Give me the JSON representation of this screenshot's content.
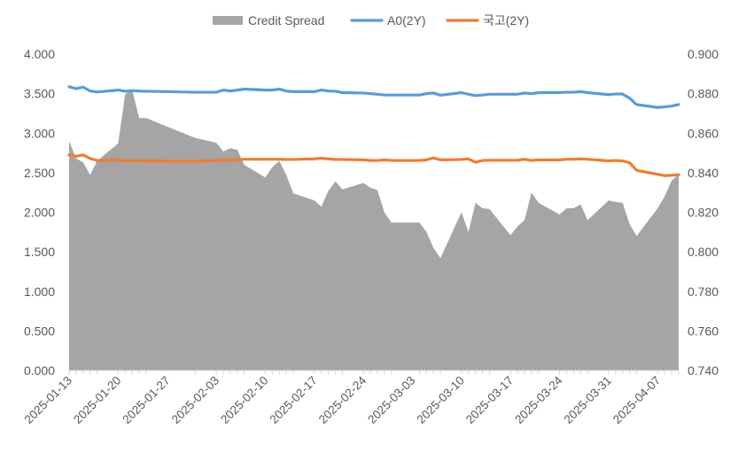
{
  "chart_data": {
    "type": "area+line",
    "title": "",
    "legend_position": "top",
    "grid": false,
    "dates": [
      "2025-01-13",
      "2025-01-14",
      "2025-01-15",
      "2025-01-16",
      "2025-01-17",
      "2025-01-20",
      "2025-01-21",
      "2025-01-22",
      "2025-01-23",
      "2025-01-24",
      "2025-01-31",
      "2025-02-03",
      "2025-02-04",
      "2025-02-05",
      "2025-02-06",
      "2025-02-07",
      "2025-02-10",
      "2025-02-11",
      "2025-02-12",
      "2025-02-13",
      "2025-02-14",
      "2025-02-17",
      "2025-02-18",
      "2025-02-19",
      "2025-02-20",
      "2025-02-21",
      "2025-02-24",
      "2025-02-25",
      "2025-02-26",
      "2025-02-27",
      "2025-02-28",
      "2025-03-04",
      "2025-03-05",
      "2025-03-06",
      "2025-03-07",
      "2025-03-10",
      "2025-03-11",
      "2025-03-12",
      "2025-03-13",
      "2025-03-14",
      "2025-03-17",
      "2025-03-18",
      "2025-03-19",
      "2025-03-20",
      "2025-03-21",
      "2025-03-24",
      "2025-03-25",
      "2025-03-26",
      "2025-03-27",
      "2025-03-28",
      "2025-03-31",
      "2025-04-01",
      "2025-04-02",
      "2025-04-03",
      "2025-04-04",
      "2025-04-07",
      "2025-04-08",
      "2025-04-09",
      "2025-04-10"
    ],
    "x_tick_labels": [
      "2025-01-13",
      "2025-01-20",
      "2025-01-27",
      "2025-02-03",
      "2025-02-10",
      "2025-02-17",
      "2025-02-24",
      "2025-03-03",
      "2025-03-10",
      "2025-03-17",
      "2025-03-24",
      "2025-03-31",
      "2025-04-07"
    ],
    "y_left": {
      "min": 0,
      "max": 4,
      "ticks": [
        "0.000",
        "0.500",
        "1.000",
        "1.500",
        "2.000",
        "2.500",
        "3.000",
        "3.500",
        "4.000"
      ]
    },
    "y_right": {
      "min": 0.74,
      "max": 0.9,
      "ticks": [
        "0.740",
        "0.760",
        "0.780",
        "0.800",
        "0.820",
        "0.840",
        "0.860",
        "0.880",
        "0.900"
      ]
    },
    "series": [
      {
        "name": "Credit Spread",
        "kind": "area",
        "axis": "left",
        "color": "#a5a5a5",
        "values": [
          2.9,
          2.68,
          2.63,
          2.47,
          2.65,
          2.87,
          3.49,
          3.55,
          3.19,
          3.19,
          2.94,
          2.88,
          2.77,
          2.81,
          2.79,
          2.6,
          2.44,
          2.57,
          2.65,
          2.47,
          2.24,
          2.15,
          2.07,
          2.27,
          2.39,
          2.29,
          2.37,
          2.31,
          2.28,
          2.0,
          1.87,
          1.87,
          1.75,
          1.55,
          1.42,
          2.0,
          1.75,
          2.12,
          2.05,
          2.04,
          1.71,
          1.82,
          1.9,
          2.25,
          2.12,
          1.97,
          2.05,
          2.05,
          2.1,
          1.9,
          2.15,
          2.13,
          2.12,
          1.85,
          1.7,
          2.05,
          2.2,
          2.4,
          2.48
        ]
      },
      {
        "name": "A0(2Y)",
        "kind": "line",
        "axis": "right",
        "color": "#5b9bd5",
        "values": [
          0.8835,
          0.8825,
          0.8833,
          0.8813,
          0.8808,
          0.8818,
          0.8812,
          0.8815,
          0.8813,
          0.8812,
          0.8807,
          0.8807,
          0.8818,
          0.8813,
          0.8818,
          0.8823,
          0.8818,
          0.8818,
          0.8823,
          0.8813,
          0.881,
          0.881,
          0.8818,
          0.8813,
          0.8812,
          0.8805,
          0.8803,
          0.88,
          0.8797,
          0.8793,
          0.8793,
          0.8793,
          0.88,
          0.8803,
          0.8792,
          0.8805,
          0.8797,
          0.879,
          0.8793,
          0.8797,
          0.8797,
          0.8797,
          0.8803,
          0.88,
          0.8805,
          0.8805,
          0.8807,
          0.8807,
          0.881,
          0.8805,
          0.8795,
          0.8798,
          0.8798,
          0.8777,
          0.8745,
          0.873,
          0.8733,
          0.8737,
          0.8745
        ]
      },
      {
        "name": "국고(2Y)",
        "kind": "line",
        "axis": "right",
        "color": "#ed7d31",
        "values": [
          0.849,
          0.8483,
          0.849,
          0.8472,
          0.8462,
          0.8465,
          0.846,
          0.8462,
          0.846,
          0.846,
          0.8458,
          0.8462,
          0.8465,
          0.8462,
          0.8467,
          0.8468,
          0.8468,
          0.8468,
          0.8468,
          0.8467,
          0.8467,
          0.847,
          0.8473,
          0.847,
          0.8467,
          0.8467,
          0.8465,
          0.8462,
          0.8462,
          0.8465,
          0.8462,
          0.8462,
          0.8465,
          0.8475,
          0.8465,
          0.8467,
          0.847,
          0.8453,
          0.8462,
          0.8463,
          0.8463,
          0.8463,
          0.8468,
          0.8462,
          0.8465,
          0.8465,
          0.8468,
          0.8468,
          0.847,
          0.8468,
          0.846,
          0.8462,
          0.846,
          0.845,
          0.8412,
          0.8392,
          0.8385,
          0.8387,
          0.839
        ]
      }
    ]
  }
}
